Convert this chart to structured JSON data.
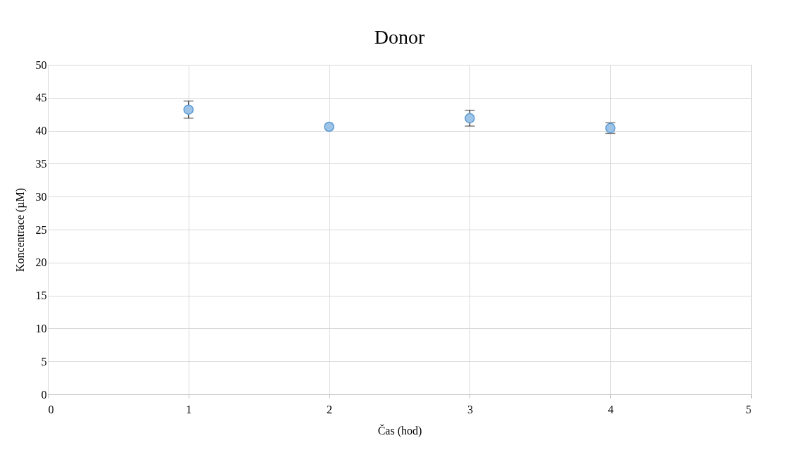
{
  "chart_data": {
    "type": "scatter",
    "title": "Donor",
    "xlabel": "Čas (hod)",
    "ylabel": "Koncentrace (µM)",
    "x": [
      1,
      2,
      3,
      4
    ],
    "series": [
      {
        "color": "#9dc3e6",
        "values": [
          43.2,
          40.6,
          41.9,
          40.4
        ],
        "errors": [
          1.3,
          null,
          1.2,
          0.8
        ]
      }
    ],
    "xlim": [
      0,
      5
    ],
    "xticks": [
      0,
      1,
      2,
      3,
      4,
      5
    ],
    "ylim": [
      0,
      50
    ],
    "yticks": [
      0,
      5,
      10,
      15,
      20,
      25,
      30,
      35,
      40,
      45,
      50
    ],
    "grid": true,
    "marker": "circle",
    "legend": false
  }
}
